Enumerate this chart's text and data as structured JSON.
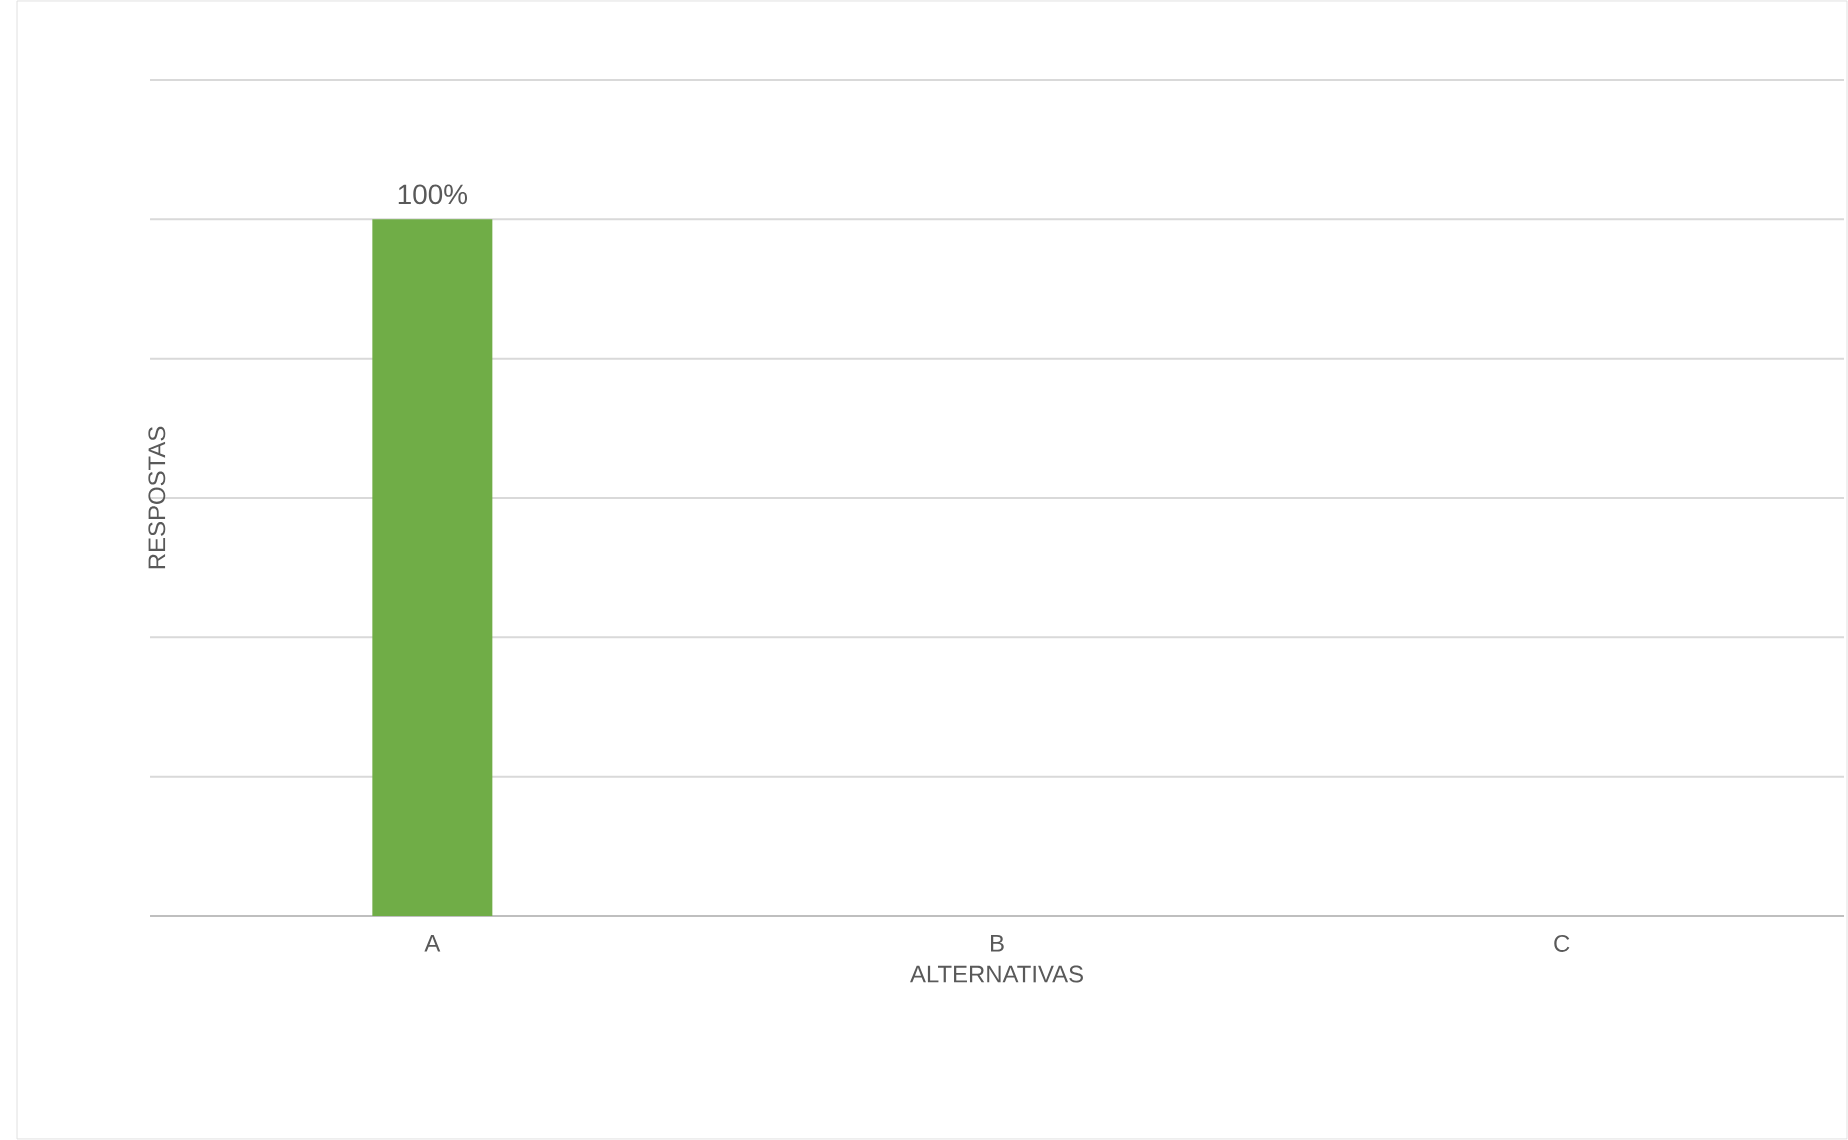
{
  "chart_data": {
    "type": "bar",
    "xlabel": "ALTERNATIVAS",
    "ylabel": "RESPOSTAS",
    "categories": [
      "A",
      "B",
      "C"
    ],
    "values": [
      100,
      0,
      0
    ],
    "value_labels": [
      "100%",
      null,
      null
    ],
    "color": "#70ad47",
    "tick_labels": "x",
    "grid": "y"
  }
}
